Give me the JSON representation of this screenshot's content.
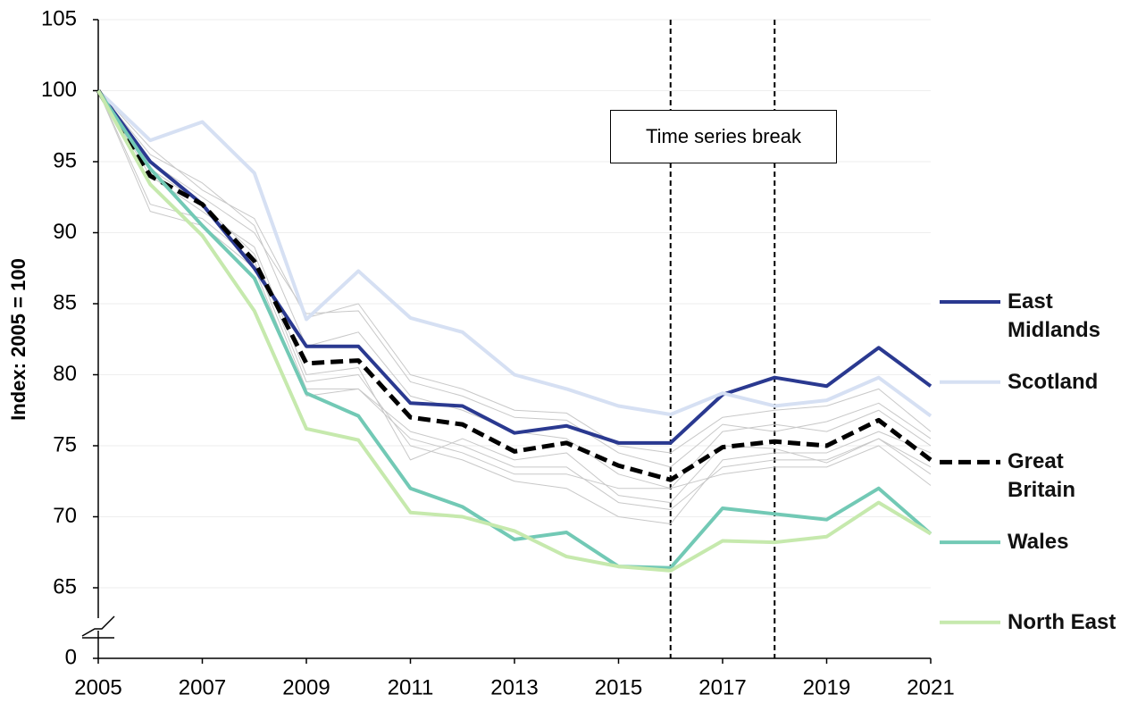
{
  "chart_data": {
    "type": "line",
    "y_axis_label": "Index: 2005 = 100",
    "x": [
      2005,
      2006,
      2007,
      2008,
      2009,
      2010,
      2011,
      2012,
      2013,
      2014,
      2015,
      2016,
      2017,
      2018,
      2019,
      2020,
      2021
    ],
    "xlim": [
      2005,
      2021
    ],
    "xticks": [
      2005,
      2007,
      2009,
      2011,
      2013,
      2015,
      2017,
      2019,
      2021
    ],
    "ylim": [
      0,
      105
    ],
    "yticks": [
      0,
      65,
      70,
      75,
      80,
      85,
      90,
      95,
      100,
      105
    ],
    "axis_break": [
      0,
      65
    ],
    "grid": true,
    "vlines": [
      2016,
      2018
    ],
    "annotation": "Time series break",
    "series": [
      {
        "color": "#c8c8c8",
        "values": [
          100,
          96,
          93,
          91,
          84,
          85,
          80,
          79,
          77.5,
          77.3,
          75,
          74.5,
          77,
          77.5,
          77.8,
          79,
          76
        ]
      },
      {
        "color": "#c8c8c8",
        "values": [
          100,
          95,
          92.5,
          90,
          84.3,
          84.5,
          79.5,
          78.5,
          77,
          76.8,
          74.5,
          73.5,
          76.5,
          76,
          76.7,
          78,
          75.5
        ]
      },
      {
        "color": "#c8c8c8",
        "values": [
          100,
          92,
          91,
          88,
          79,
          79,
          76,
          75,
          73.5,
          73.5,
          71,
          70.5,
          73.5,
          74,
          74,
          75.5,
          73
        ]
      },
      {
        "color": "#c8c8c8",
        "values": [
          100,
          91.5,
          90.5,
          87.5,
          78.5,
          79,
          75.5,
          74.5,
          73,
          73,
          72,
          72,
          73,
          73.5,
          73.5,
          75,
          72.2
        ]
      },
      {
        "color": "#c8c8c8",
        "values": [
          100,
          94.5,
          92,
          88.5,
          79.5,
          80,
          75,
          74,
          72.5,
          72,
          70,
          69.5,
          74,
          74.5,
          74.5,
          76,
          74.5
        ]
      },
      {
        "color": "#c8c8c8",
        "values": [
          100,
          95.5,
          93.5,
          90.5,
          82,
          83,
          78.5,
          77.5,
          76,
          75.5,
          73,
          72,
          76,
          76.5,
          76,
          77.5,
          75
        ]
      },
      {
        "color": "#c8c8c8",
        "values": [
          100,
          94,
          91.5,
          89,
          80,
          80.5,
          74,
          75.5,
          74,
          74.5,
          71.5,
          71,
          75,
          74.8,
          73.8,
          75.5,
          73.5
        ]
      },
      {
        "name": "East Midlands",
        "color": "#2a3990",
        "values": [
          100,
          95,
          92,
          87.5,
          82,
          82,
          78,
          77.8,
          75.9,
          76.4,
          75.2,
          75.2,
          78.6,
          79.8,
          79.2,
          81.9,
          79.2
        ]
      },
      {
        "name": "Scotland",
        "color": "#d6e0f3",
        "values": [
          100,
          96.5,
          97.8,
          94.2,
          83.9,
          87.3,
          84,
          83,
          80,
          79,
          77.8,
          77.2,
          78.7,
          77.8,
          78.2,
          79.8,
          77.1
        ]
      },
      {
        "name": "Great Britain",
        "color": "#000000",
        "dashed": true,
        "values": [
          100,
          94,
          92,
          88,
          80.8,
          81,
          77,
          76.5,
          74.6,
          75.2,
          73.6,
          72.6,
          74.9,
          75.3,
          75,
          76.8,
          74
        ]
      },
      {
        "name": "Wales",
        "color": "#72c9b5",
        "values": [
          100,
          94.5,
          90.5,
          86.8,
          78.7,
          77.1,
          72,
          70.7,
          68.4,
          68.9,
          66.5,
          66.4,
          70.6,
          70.2,
          69.8,
          72,
          68.8
        ]
      },
      {
        "name": "North East",
        "color": "#c6e9ad",
        "values": [
          100,
          93.4,
          89.8,
          84.5,
          76.2,
          75.4,
          70.3,
          70,
          69,
          67.2,
          66.5,
          66.2,
          68.3,
          68.2,
          68.6,
          71,
          68.8
        ]
      }
    ]
  }
}
